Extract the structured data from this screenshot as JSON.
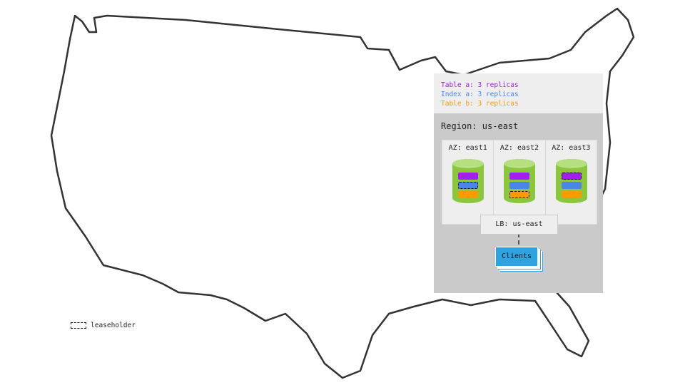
{
  "legend": [
    {
      "label": "Table a: 3 replicas",
      "color": "#a020f0"
    },
    {
      "label": "Index a: 3 replicas",
      "color": "#4a86e8"
    },
    {
      "label": "Table b: 3 replicas",
      "color": "#ff9900"
    }
  ],
  "region": "Region: us-east",
  "azs": [
    {
      "label": "AZ: east1",
      "leaseholder": "Index a"
    },
    {
      "label": "AZ: east2",
      "leaseholder": "Table b"
    },
    {
      "label": "AZ: east3",
      "leaseholder": "Table a"
    }
  ],
  "lb": "LB: us-east",
  "clients": "Clients",
  "leaseholder_legend": "leaseholder"
}
